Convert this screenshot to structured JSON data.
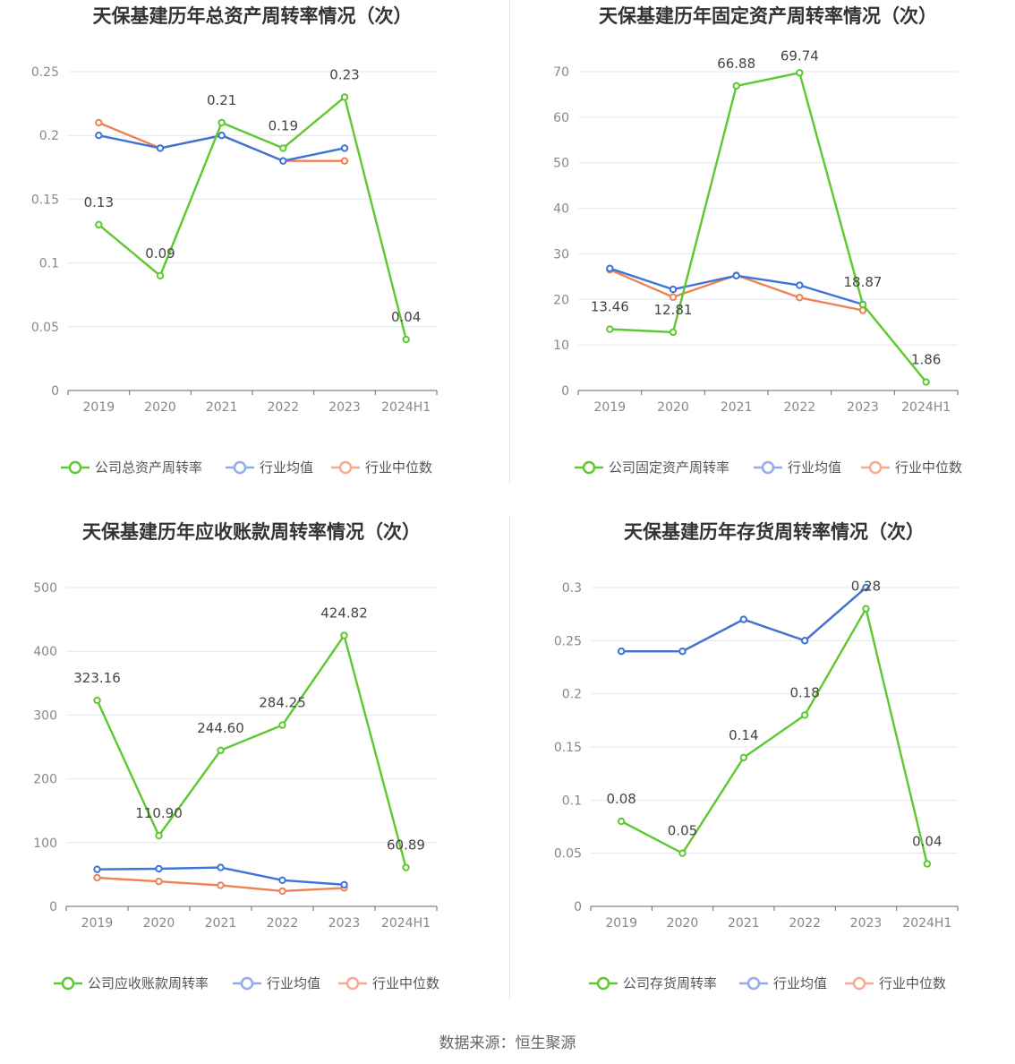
{
  "source": "数据来源：恒生聚源",
  "colors": {
    "company": "#5cc92f",
    "avg": "#3c74d8",
    "median": "#ef8157",
    "grid": "#e3e6ef",
    "axis": "#666666"
  },
  "legend_names": {
    "avg": "行业均值",
    "median": "行业中位数"
  },
  "chart_data": [
    {
      "type": "line",
      "title": "天保基建历年总资产周转率情况（次）",
      "categories": [
        "2019",
        "2020",
        "2021",
        "2022",
        "2023",
        "2024H1"
      ],
      "yticks": [
        "0",
        "0.05",
        "0.1",
        "0.15",
        "0.2",
        "0.25"
      ],
      "ylim": [
        0,
        0.25
      ],
      "series": [
        {
          "key": "company",
          "name": "公司总资产周转率",
          "values": [
            0.13,
            0.09,
            0.21,
            0.19,
            0.23,
            0.04
          ],
          "labels": [
            "0.13",
            "0.09",
            "0.21",
            "0.19",
            "0.23",
            "0.04"
          ]
        },
        {
          "key": "avg",
          "name": "行业均值",
          "values": [
            0.2,
            0.19,
            0.2,
            0.18,
            0.19,
            null
          ]
        },
        {
          "key": "median",
          "name": "行业中位数",
          "values": [
            0.21,
            0.19,
            0.2,
            0.18,
            0.18,
            null
          ]
        }
      ]
    },
    {
      "type": "line",
      "title": "天保基建历年固定资产周转率情况（次）",
      "categories": [
        "2019",
        "2020",
        "2021",
        "2022",
        "2023",
        "2024H1"
      ],
      "yticks": [
        "0",
        "10",
        "20",
        "30",
        "40",
        "50",
        "60",
        "70"
      ],
      "ylim": [
        0,
        70
      ],
      "series": [
        {
          "key": "company",
          "name": "公司固定资产周转率",
          "values": [
            13.46,
            12.81,
            66.88,
            69.74,
            18.87,
            1.86
          ],
          "labels": [
            "13.46",
            "12.81",
            "66.88",
            "69.74",
            "18.87",
            "1.86"
          ]
        },
        {
          "key": "avg",
          "name": "行业均值",
          "values": [
            26.8,
            22.2,
            25.2,
            23.1,
            18.9,
            null
          ]
        },
        {
          "key": "median",
          "name": "行业中位数",
          "values": [
            26.5,
            20.5,
            25.3,
            20.4,
            17.6,
            null
          ]
        }
      ]
    },
    {
      "type": "line",
      "title": "天保基建历年应收账款周转率情况（次）",
      "categories": [
        "2019",
        "2020",
        "2021",
        "2022",
        "2023",
        "2024H1"
      ],
      "yticks": [
        "0",
        "100",
        "200",
        "300",
        "400",
        "500"
      ],
      "ylim": [
        0,
        500
      ],
      "series": [
        {
          "key": "company",
          "name": "公司应收账款周转率",
          "values": [
            323.16,
            110.9,
            244.6,
            284.25,
            424.82,
            60.89
          ],
          "labels": [
            "323.16",
            "110.90",
            "244.60",
            "284.25",
            "424.82",
            "60.89"
          ]
        },
        {
          "key": "avg",
          "name": "行业均值",
          "values": [
            58,
            59,
            61,
            41,
            34,
            null
          ]
        },
        {
          "key": "median",
          "name": "行业中位数",
          "values": [
            45,
            39,
            33,
            24,
            29,
            null
          ]
        }
      ]
    },
    {
      "type": "line",
      "title": "天保基建历年存货周转率情况（次）",
      "categories": [
        "2019",
        "2020",
        "2021",
        "2022",
        "2023",
        "2024H1"
      ],
      "yticks": [
        "0",
        "0.05",
        "0.1",
        "0.15",
        "0.2",
        "0.25",
        "0.3"
      ],
      "ylim": [
        0,
        0.3
      ],
      "series": [
        {
          "key": "company",
          "name": "公司存货周转率",
          "values": [
            0.08,
            0.05,
            0.14,
            0.18,
            0.28,
            0.04
          ],
          "labels": [
            "0.08",
            "0.05",
            "0.14",
            "0.18",
            "0.28",
            "0.04"
          ]
        },
        {
          "key": "avg",
          "name": "行业均值",
          "values": [
            0.24,
            0.24,
            0.27,
            0.25,
            0.3,
            null
          ]
        },
        {
          "key": "median",
          "name": "行业中位数",
          "values": [
            0.24,
            0.24,
            0.27,
            0.25,
            0.3,
            null
          ]
        }
      ]
    }
  ]
}
